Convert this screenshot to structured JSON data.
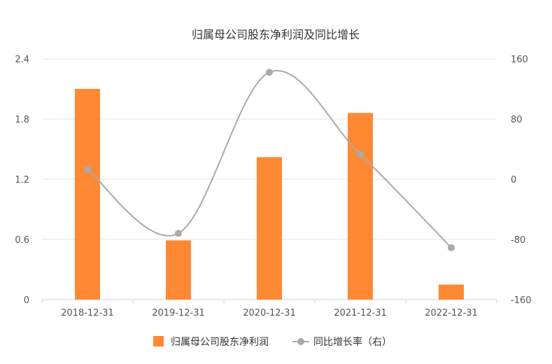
{
  "chart_data": {
    "type": "bar",
    "title": "归属母公司股东净利润及同比增长",
    "categories": [
      "2018-12-31",
      "2019-12-31",
      "2020-12-31",
      "2021-12-31",
      "2022-12-31"
    ],
    "series": [
      {
        "name": "归属母公司股东净利润",
        "type": "bar",
        "axis": "left",
        "values": [
          2.1,
          0.59,
          1.42,
          1.86,
          0.15
        ],
        "color": "#FF8833"
      },
      {
        "name": "同比增长率（右）",
        "type": "line",
        "axis": "right",
        "values": [
          13,
          -72,
          142,
          33,
          -91
        ],
        "color": "#AAAAAA"
      }
    ],
    "y_left": {
      "ticks": [
        "0",
        "0.6",
        "1.2",
        "1.8",
        "2.4"
      ],
      "ylim": [
        0,
        2.4
      ]
    },
    "y_right": {
      "ticks": [
        "-160",
        "-80",
        "0",
        "80",
        "160"
      ],
      "ylim": [
        -160,
        160
      ]
    },
    "grid": true,
    "legend_position": "bottom"
  }
}
